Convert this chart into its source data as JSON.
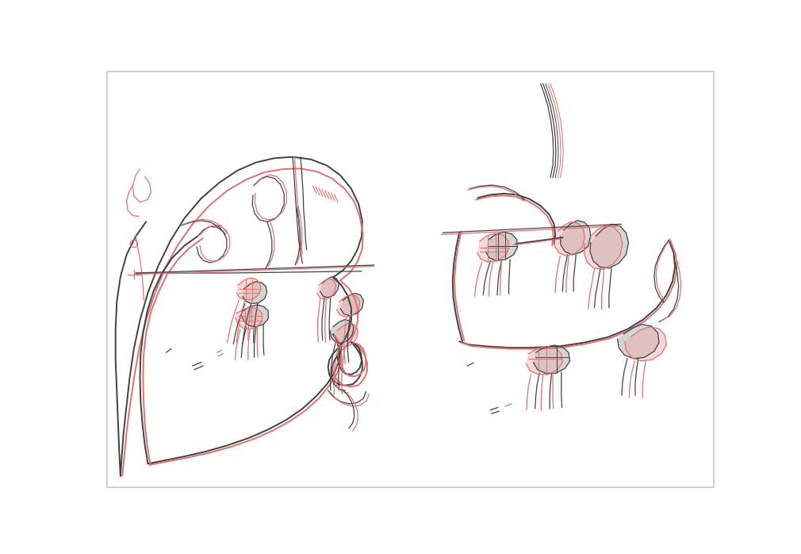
{
  "bg_color": "#ffffff",
  "border_color": "#c8c8c8",
  "black_color": "#404040",
  "red_color": "#e07070",
  "pink_fill": "#f0aaaa",
  "gray_fill": "#aaaaaa",
  "lw_main": 1.4,
  "lw_thin": 0.9,
  "lw_xtra": 0.7,
  "fig_width": 10.1,
  "fig_height": 6.98
}
